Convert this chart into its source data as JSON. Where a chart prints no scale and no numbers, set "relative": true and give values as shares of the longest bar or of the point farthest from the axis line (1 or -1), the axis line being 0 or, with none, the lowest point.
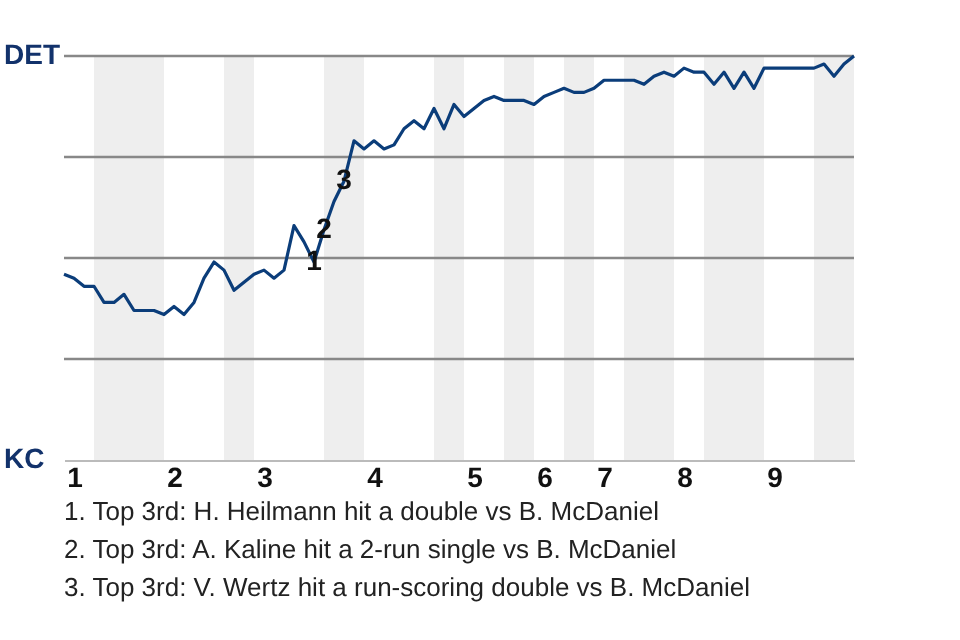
{
  "chart_data": {
    "type": "line",
    "categories": [
      null,
      "1",
      null,
      null,
      null,
      null,
      null,
      null,
      null,
      null,
      null,
      "2",
      null,
      null,
      null,
      null,
      null,
      null,
      null,
      null,
      "3",
      null,
      null,
      null,
      null,
      null,
      null,
      null,
      null,
      null,
      null,
      "4",
      null,
      null,
      null,
      null,
      null,
      null,
      null,
      null,
      null,
      "5",
      null,
      null,
      null,
      null,
      null,
      null,
      "6",
      null,
      null,
      null,
      null,
      null,
      "7",
      null,
      null,
      null,
      null,
      null,
      null,
      null,
      "8",
      null,
      null,
      null,
      null,
      null,
      null,
      null,
      null,
      "9",
      null,
      null,
      null,
      null,
      null,
      null,
      null,
      null
    ],
    "relative": true,
    "series": [
      {
        "color": "#0b3d7a",
        "values": [
          0.46,
          0.45,
          0.43,
          0.43,
          0.39,
          0.39,
          0.41,
          0.37,
          0.37,
          0.37,
          0.36,
          0.38,
          0.36,
          0.39,
          0.45,
          0.49,
          0.47,
          0.42,
          0.44,
          0.46,
          0.47,
          0.45,
          0.47,
          0.58,
          0.54,
          0.49,
          0.57,
          0.64,
          0.69,
          0.79,
          0.77,
          0.79,
          0.77,
          0.78,
          0.82,
          0.84,
          0.82,
          0.87,
          0.82,
          0.88,
          0.85,
          0.87,
          0.89,
          0.9,
          0.89,
          0.89,
          0.89,
          0.88,
          0.9,
          0.91,
          0.92,
          0.91,
          0.91,
          0.92,
          0.94,
          0.94,
          0.94,
          0.94,
          0.93,
          0.95,
          0.96,
          0.95,
          0.97,
          0.96,
          0.96,
          0.93,
          0.96,
          0.92,
          0.96,
          0.92,
          0.97,
          0.97,
          0.97,
          0.97,
          0.97,
          0.97,
          0.98,
          0.95,
          0.98,
          1
        ]
      }
    ],
    "ref_lines": [
      {
        "axis": "y",
        "value": 0.25,
        "color": "#888888"
      },
      {
        "axis": "y",
        "value": 0.5,
        "color": "#888888"
      },
      {
        "axis": "y",
        "value": 0.75,
        "color": "#888888"
      },
      {
        "axis": "y",
        "value": 1,
        "color": "#888888"
      }
    ],
    "annotations": [
      {
        "text": "1",
        "y": 0.49
      },
      {
        "text": "2",
        "y": 0.57
      },
      {
        "text": "3",
        "y": 0.69
      },
      "DET",
      "KC",
      "1. Top 3rd: H. Heilmann hit a double vs B. McDaniel",
      "2. Top 3rd: A. Kaline hit a 2-run single vs B. McDaniel",
      "3. Top 3rd: V. Wertz hit a run-scoring double vs B. McDaniel"
    ]
  }
}
